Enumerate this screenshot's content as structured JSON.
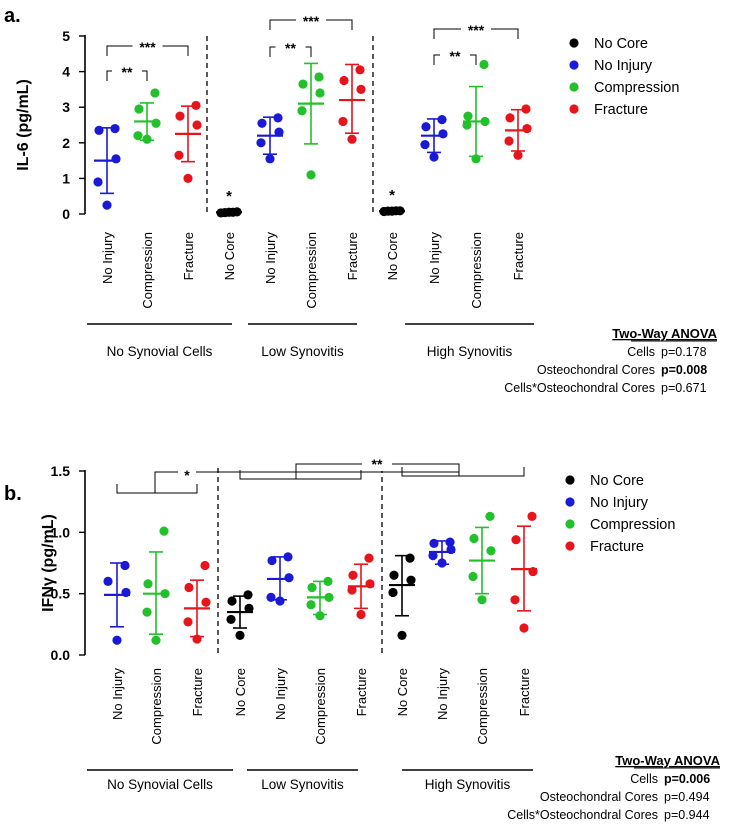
{
  "chart_data": [
    {
      "type": "scatter",
      "panel": "a.",
      "title": "",
      "xlabel": "",
      "ylabel": "IL-6 (pg/mL)",
      "ylim": [
        0,
        5
      ],
      "yticks": [
        "0",
        "1",
        "2",
        "3",
        "4",
        "5"
      ],
      "legend": {
        "placement": "top-right",
        "entries": [
          {
            "label": "No Core",
            "color": "#000000"
          },
          {
            "label": "No Injury",
            "color": "#1a1ad6"
          },
          {
            "label": "Compression",
            "color": "#22c02a"
          },
          {
            "label": "Fracture",
            "color": "#e8141c"
          }
        ]
      },
      "groups": [
        {
          "label": "No Synovial Cells",
          "categories": [
            {
              "label": "No Injury",
              "series": "No Injury",
              "mean": 1.5,
              "sd_low": 0.58,
              "sd_high": 2.42,
              "points": [
                0.25,
                0.9,
                1.55,
                2.4,
                2.35
              ]
            },
            {
              "label": "Compression",
              "series": "Compression",
              "mean": 2.6,
              "sd_low": 2.07,
              "sd_high": 3.12,
              "points": [
                2.1,
                2.2,
                2.55,
                2.95,
                3.4
              ]
            },
            {
              "label": "Fracture",
              "series": "Fracture",
              "mean": 2.25,
              "sd_low": 1.47,
              "sd_high": 3.03,
              "points": [
                1.0,
                1.65,
                2.5,
                2.75,
                3.05
              ]
            }
          ]
        },
        {
          "label": "Low Synovitis",
          "categories": [
            {
              "label": "No Core",
              "series": "No Core",
              "mean": 0.05,
              "sd_low": 0.02,
              "sd_high": 0.08,
              "points": [
                0.03,
                0.04,
                0.05,
                0.06,
                0.05
              ]
            },
            {
              "label": "No Injury",
              "series": "No Injury",
              "mean": 2.2,
              "sd_low": 1.68,
              "sd_high": 2.72,
              "points": [
                1.55,
                2.0,
                2.3,
                2.55,
                2.7
              ]
            },
            {
              "label": "Compression",
              "series": "Compression",
              "mean": 3.1,
              "sd_low": 1.97,
              "sd_high": 4.23,
              "points": [
                1.1,
                2.9,
                3.4,
                3.65,
                3.85
              ]
            },
            {
              "label": "Fracture",
              "series": "Fracture",
              "mean": 3.2,
              "sd_low": 2.27,
              "sd_high": 4.2,
              "points": [
                2.1,
                2.6,
                3.5,
                3.75,
                4.05
              ]
            }
          ]
        },
        {
          "label": "High Synovitis",
          "categories": [
            {
              "label": "No Core",
              "series": "No Core",
              "mean": 0.08,
              "sd_low": 0.05,
              "sd_high": 0.11,
              "points": [
                0.07,
                0.08,
                0.09,
                0.08,
                0.09
              ]
            },
            {
              "label": "No Injury",
              "series": "No Injury",
              "mean": 2.2,
              "sd_low": 1.73,
              "sd_high": 2.67,
              "points": [
                1.6,
                1.95,
                2.25,
                2.45,
                2.65
              ]
            },
            {
              "label": "Compression",
              "series": "Compression",
              "mean": 2.6,
              "sd_low": 1.62,
              "sd_high": 3.58,
              "points": [
                1.55,
                2.5,
                2.6,
                2.75,
                4.2
              ]
            },
            {
              "label": "Fracture",
              "series": "Fracture",
              "mean": 2.35,
              "sd_low": 1.77,
              "sd_high": 2.93,
              "points": [
                1.65,
                2.05,
                2.4,
                2.7,
                2.95
              ]
            }
          ]
        }
      ],
      "significance_brackets": [
        {
          "from": [
            0,
            0
          ],
          "to": [
            0,
            1
          ],
          "label": "**",
          "level": 0
        },
        {
          "from": [
            0,
            0
          ],
          "to": [
            0,
            2
          ],
          "label": "***",
          "level": 1
        },
        {
          "from": [
            1,
            1
          ],
          "to": [
            1,
            2
          ],
          "label": "**",
          "level": 0
        },
        {
          "from": [
            1,
            1
          ],
          "to": [
            1,
            3
          ],
          "label": "***",
          "level": 1
        },
        {
          "from": [
            2,
            1
          ],
          "to": [
            2,
            2
          ],
          "label": "**",
          "level": 0
        },
        {
          "from": [
            2,
            1
          ],
          "to": [
            2,
            3
          ],
          "label": "***",
          "level": 1
        }
      ],
      "asterisks": [
        {
          "group": 1,
          "category": 0,
          "label": "*"
        },
        {
          "group": 2,
          "category": 0,
          "label": "*"
        }
      ],
      "anova": {
        "title": "Two-Way ANOVA",
        "rows": [
          {
            "label": "Cells",
            "value": "p=0.178",
            "bold": false
          },
          {
            "label": "Osteochondral Cores",
            "value": "p=0.008",
            "bold": true
          },
          {
            "label": "Cells*Osteochondral Cores",
            "value": "p=0.671",
            "bold": false
          }
        ]
      }
    },
    {
      "type": "scatter",
      "panel": "b.",
      "title": "",
      "xlabel": "",
      "ylabel": "IFNγ (pg/mL)",
      "ylim": [
        0,
        1.5
      ],
      "yticks": [
        "0.0",
        "0.5",
        "1.0",
        "1.5"
      ],
      "legend": {
        "placement": "top-right",
        "entries": [
          {
            "label": "No Core",
            "color": "#000000"
          },
          {
            "label": "No Injury",
            "color": "#1a1ad6"
          },
          {
            "label": "Compression",
            "color": "#22c02a"
          },
          {
            "label": "Fracture",
            "color": "#e8141c"
          }
        ]
      },
      "groups": [
        {
          "label": "No Synovial Cells",
          "categories": [
            {
              "label": "No Injury",
              "series": "No Injury",
              "mean": 0.49,
              "sd_low": 0.23,
              "sd_high": 0.75,
              "points": [
                0.12,
                0.51,
                0.6,
                0.73
              ]
            },
            {
              "label": "Compression",
              "series": "Compression",
              "mean": 0.5,
              "sd_low": 0.17,
              "sd_high": 0.84,
              "points": [
                0.12,
                0.35,
                0.5,
                0.58,
                1.01
              ]
            },
            {
              "label": "Fracture",
              "series": "Fracture",
              "mean": 0.38,
              "sd_low": 0.15,
              "sd_high": 0.61,
              "points": [
                0.13,
                0.27,
                0.43,
                0.55,
                0.73
              ]
            }
          ]
        },
        {
          "label": "Low Synovitis",
          "categories": [
            {
              "label": "No Core",
              "series": "No Core",
              "mean": 0.35,
              "sd_low": 0.22,
              "sd_high": 0.48,
              "points": [
                0.16,
                0.29,
                0.38,
                0.44,
                0.49
              ]
            },
            {
              "label": "No Injury",
              "series": "No Injury",
              "mean": 0.62,
              "sd_low": 0.45,
              "sd_high": 0.8,
              "points": [
                0.44,
                0.47,
                0.63,
                0.77,
                0.8
              ]
            },
            {
              "label": "Compression",
              "series": "Compression",
              "mean": 0.47,
              "sd_low": 0.33,
              "sd_high": 0.6,
              "points": [
                0.32,
                0.41,
                0.47,
                0.55,
                0.6
              ]
            },
            {
              "label": "Fracture",
              "series": "Fracture",
              "mean": 0.56,
              "sd_low": 0.38,
              "sd_high": 0.74,
              "points": [
                0.33,
                0.53,
                0.58,
                0.65,
                0.79
              ]
            }
          ]
        },
        {
          "label": "High Synovitis",
          "categories": [
            {
              "label": "No Core",
              "series": "No Core",
              "mean": 0.57,
              "sd_low": 0.32,
              "sd_high": 0.81,
              "points": [
                0.16,
                0.51,
                0.61,
                0.65,
                0.79
              ]
            },
            {
              "label": "No Injury",
              "series": "No Injury",
              "mean": 0.84,
              "sd_low": 0.74,
              "sd_high": 0.93,
              "points": [
                0.75,
                0.81,
                0.86,
                0.91,
                0.92
              ]
            },
            {
              "label": "Compression",
              "series": "Compression",
              "mean": 0.77,
              "sd_low": 0.5,
              "sd_high": 1.04,
              "points": [
                0.45,
                0.64,
                0.85,
                0.95,
                1.13
              ]
            },
            {
              "label": "Fracture",
              "series": "Fracture",
              "mean": 0.7,
              "sd_low": 0.36,
              "sd_high": 1.05,
              "points": [
                0.22,
                0.45,
                0.68,
                0.94,
                1.13
              ]
            }
          ]
        }
      ],
      "significance_brackets": [
        {
          "between_groups": [
            1,
            2
          ],
          "label": "**"
        },
        {
          "between_groups": [
            0,
            2
          ],
          "label": "*"
        }
      ],
      "asterisks": [],
      "anova": {
        "title": "Two-Way ANOVA",
        "rows": [
          {
            "label": "Cells",
            "value": "p=0.006",
            "bold": true
          },
          {
            "label": "Osteochondral Cores",
            "value": "p=0.494",
            "bold": false
          },
          {
            "label": "Cells*Osteochondral Cores",
            "value": "p=0.944",
            "bold": false
          }
        ]
      }
    }
  ]
}
